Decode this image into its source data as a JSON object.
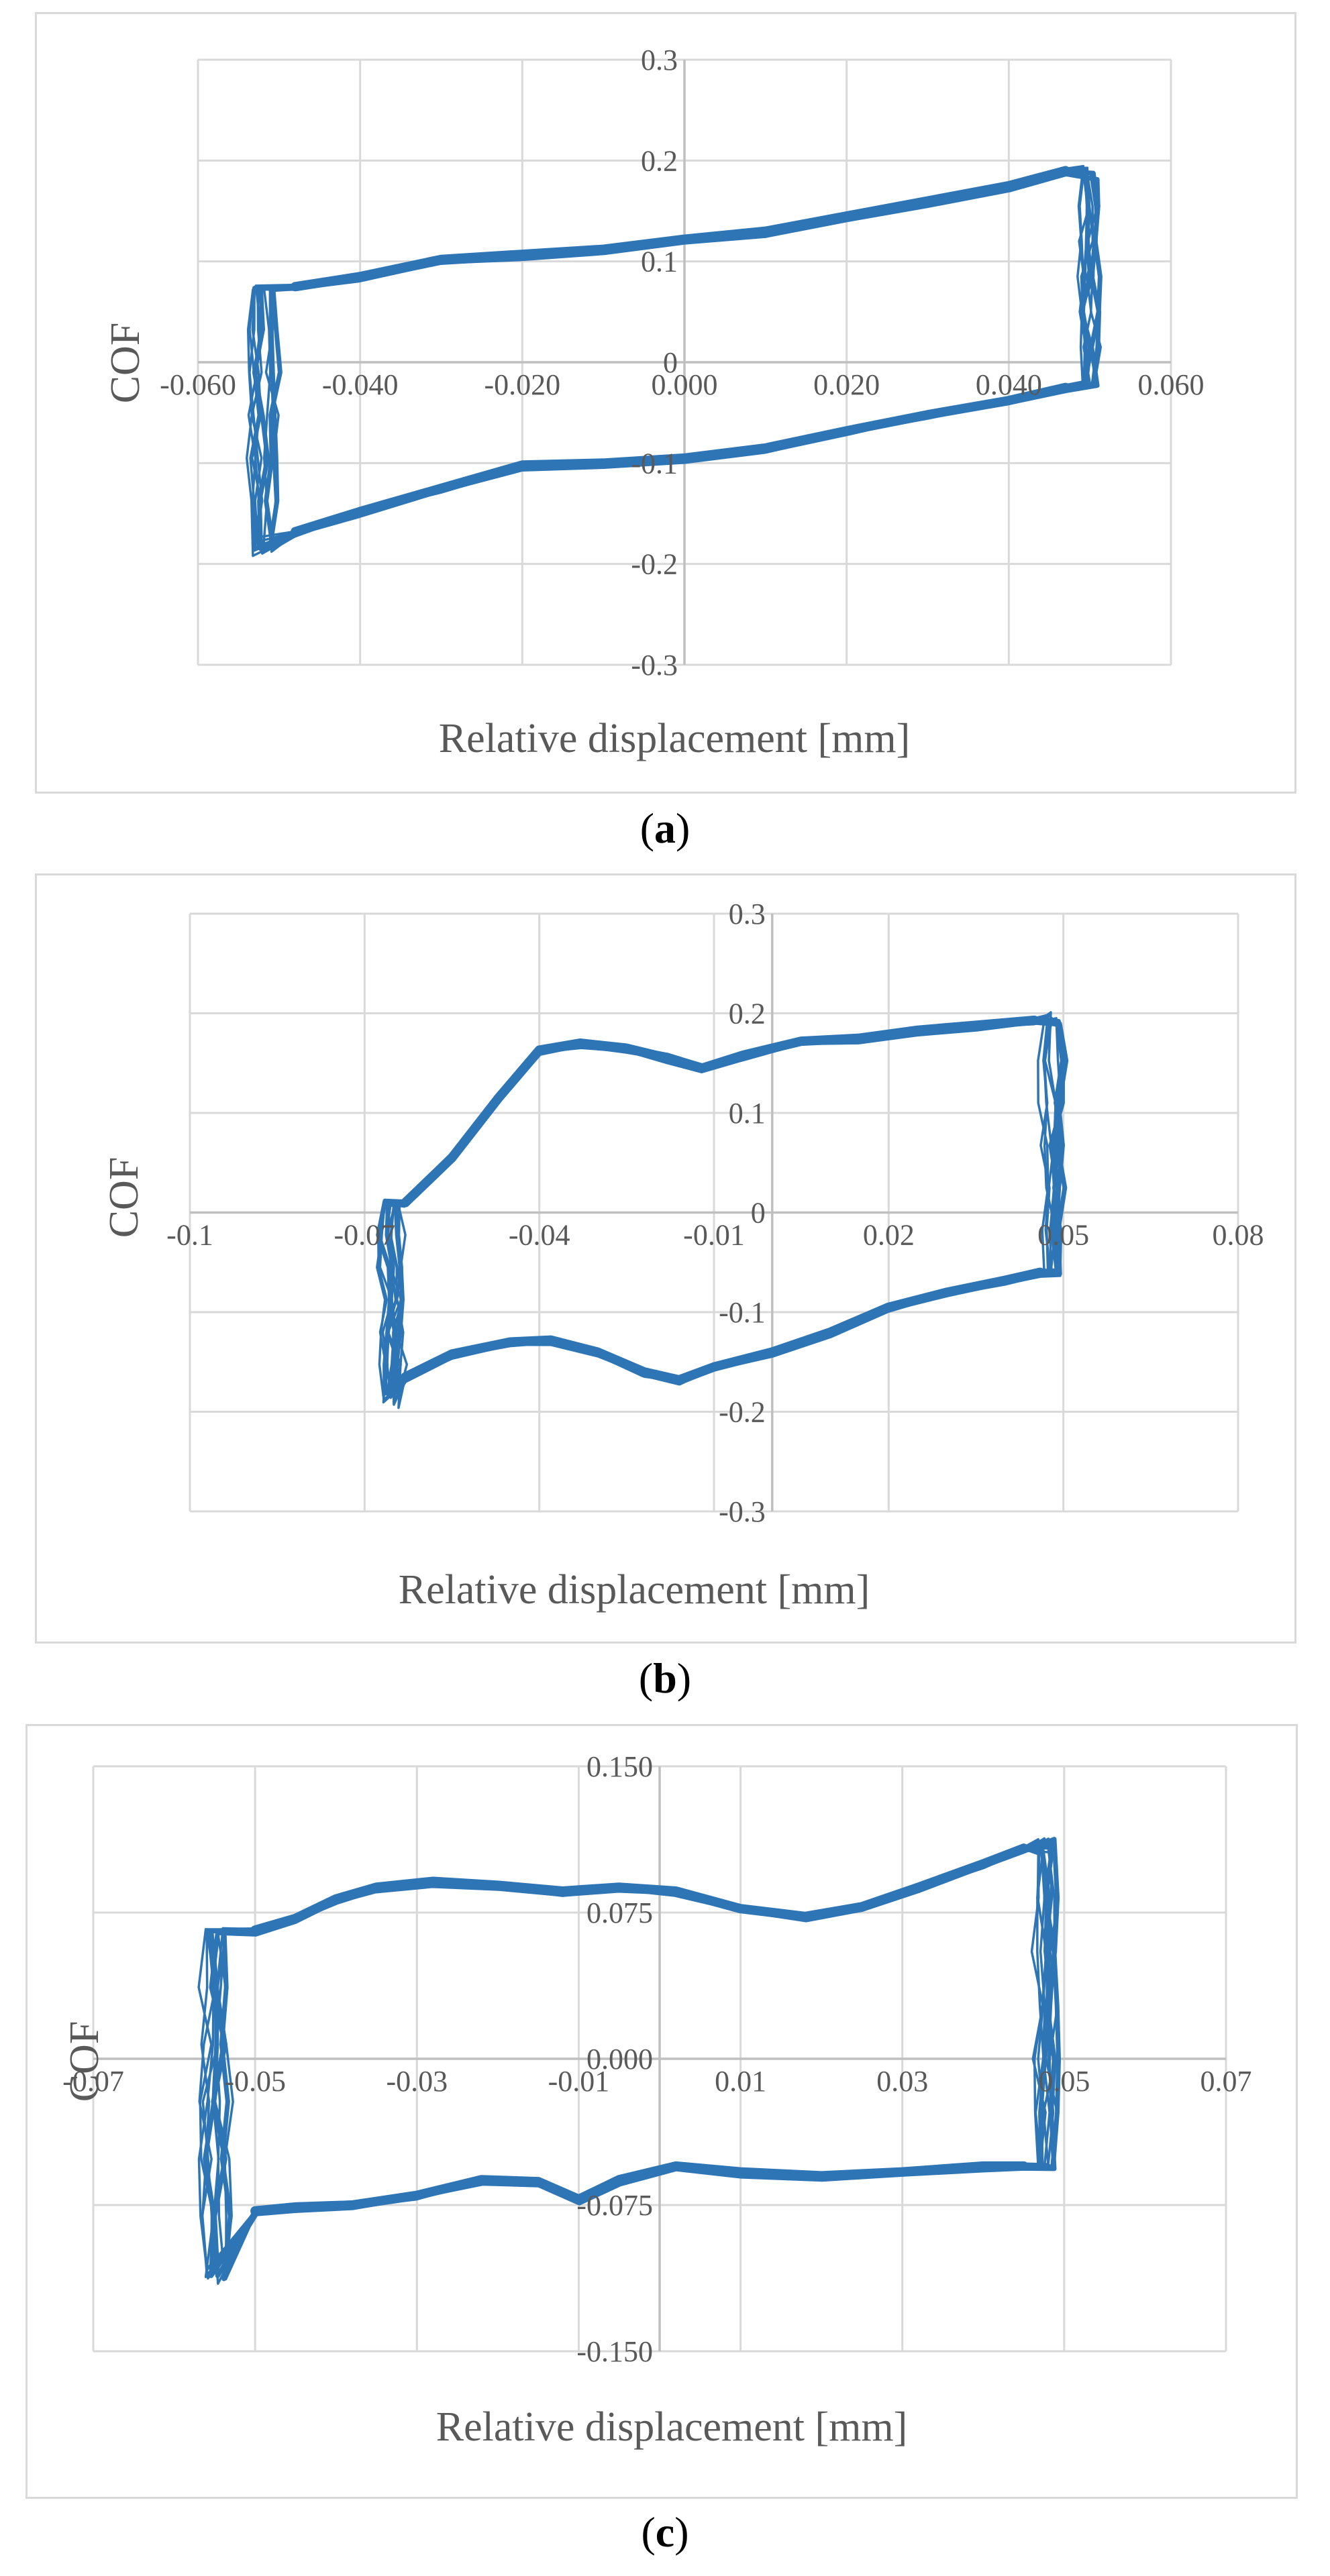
{
  "colors": {
    "series": "#2e75b6",
    "grid": "#d9d9d9",
    "axis": "#bfbfbf",
    "text": "#595959"
  },
  "chart_data": [
    {
      "type": "line",
      "panel": "a",
      "caption_letter": "a",
      "xlabel": "Relative displacement [mm]",
      "ylabel": "COF",
      "xlim": [
        -0.06,
        0.06
      ],
      "ylim": [
        -0.3,
        0.3
      ],
      "x_ticks": [
        "-0.060",
        "-0.040",
        "-0.020",
        "0.000",
        "0.020",
        "0.040",
        "0.060"
      ],
      "y_ticks": [
        "-0.3",
        "-0.2",
        "-0.1",
        "0",
        "0.1",
        "0.2",
        "0.3"
      ],
      "grid": true,
      "loop": {
        "x_left": -0.052,
        "x_right": 0.05,
        "top_left": 0.075,
        "bottom_left": -0.18,
        "top_right": 0.19,
        "bottom_right": -0.02,
        "upper": [
          [
            -0.048,
            0.075
          ],
          [
            -0.04,
            0.085
          ],
          [
            -0.03,
            0.102
          ],
          [
            -0.02,
            0.107
          ],
          [
            -0.01,
            0.112
          ],
          [
            0.0,
            0.122
          ],
          [
            0.01,
            0.13
          ],
          [
            0.02,
            0.145
          ],
          [
            0.03,
            0.16
          ],
          [
            0.04,
            0.175
          ],
          [
            0.047,
            0.19
          ]
        ],
        "lower": [
          [
            -0.048,
            -0.168
          ],
          [
            -0.04,
            -0.148
          ],
          [
            -0.03,
            -0.125
          ],
          [
            -0.02,
            -0.102
          ],
          [
            -0.01,
            -0.1
          ],
          [
            0.0,
            -0.095
          ],
          [
            0.01,
            -0.085
          ],
          [
            0.02,
            -0.068
          ],
          [
            0.03,
            -0.052
          ],
          [
            0.04,
            -0.038
          ],
          [
            0.047,
            -0.025
          ]
        ]
      }
    },
    {
      "type": "line",
      "panel": "b",
      "caption_letter": "b",
      "xlabel": "Relative displacement [mm]",
      "ylabel": "COF",
      "xlim": [
        -0.1,
        0.08
      ],
      "ylim": [
        -0.3,
        0.3
      ],
      "x_ticks": [
        "-0.1",
        "-0.07",
        "-0.04",
        "-0.01",
        "0.02",
        "0.05",
        "0.08"
      ],
      "y_ticks": [
        "-0.3",
        "-0.2",
        "-0.1",
        "0",
        "0.1",
        "0.2",
        "0.3"
      ],
      "grid": true,
      "loop": {
        "x_left": -0.065,
        "x_right": 0.048,
        "top_left": 0.01,
        "bottom_left": -0.185,
        "top_right": 0.195,
        "bottom_right": -0.06,
        "upper": [
          [
            -0.063,
            0.01
          ],
          [
            -0.055,
            0.055
          ],
          [
            -0.047,
            0.115
          ],
          [
            -0.04,
            0.163
          ],
          [
            -0.033,
            0.17
          ],
          [
            -0.025,
            0.165
          ],
          [
            -0.018,
            0.155
          ],
          [
            -0.012,
            0.145
          ],
          [
            -0.005,
            0.158
          ],
          [
            0.005,
            0.172
          ],
          [
            0.015,
            0.175
          ],
          [
            0.025,
            0.183
          ],
          [
            0.035,
            0.188
          ],
          [
            0.045,
            0.193
          ]
        ],
        "lower": [
          [
            -0.063,
            -0.165
          ],
          [
            -0.055,
            -0.142
          ],
          [
            -0.045,
            -0.13
          ],
          [
            -0.038,
            -0.128
          ],
          [
            -0.03,
            -0.14
          ],
          [
            -0.022,
            -0.16
          ],
          [
            -0.016,
            -0.168
          ],
          [
            -0.01,
            -0.155
          ],
          [
            0.0,
            -0.14
          ],
          [
            0.01,
            -0.12
          ],
          [
            0.02,
            -0.095
          ],
          [
            0.03,
            -0.08
          ],
          [
            0.04,
            -0.068
          ],
          [
            0.046,
            -0.06
          ]
        ]
      }
    },
    {
      "type": "line",
      "panel": "c",
      "caption_letter": "c",
      "xlabel": "Relative displacement [mm]",
      "ylabel": "COF",
      "xlim": [
        -0.07,
        0.07
      ],
      "ylim": [
        -0.15,
        0.15
      ],
      "x_ticks": [
        "-0.07",
        "-0.05",
        "-0.03",
        "-0.01",
        "0.01",
        "0.03",
        "0.05",
        "0.07"
      ],
      "y_ticks": [
        "-0.150",
        "-0.075",
        "0.000",
        "0.075",
        "0.150"
      ],
      "grid": true,
      "loop": {
        "x_left": -0.055,
        "x_right": 0.048,
        "top_left": 0.066,
        "bottom_left": -0.11,
        "top_right": 0.11,
        "bottom_right": -0.055,
        "upper": [
          [
            -0.05,
            0.066
          ],
          [
            -0.045,
            0.072
          ],
          [
            -0.04,
            0.082
          ],
          [
            -0.035,
            0.088
          ],
          [
            -0.028,
            0.091
          ],
          [
            -0.02,
            0.089
          ],
          [
            -0.012,
            0.086
          ],
          [
            -0.005,
            0.088
          ],
          [
            0.002,
            0.086
          ],
          [
            0.01,
            0.077
          ],
          [
            0.018,
            0.073
          ],
          [
            0.025,
            0.078
          ],
          [
            0.032,
            0.088
          ],
          [
            0.04,
            0.1
          ],
          [
            0.045,
            0.108
          ]
        ],
        "lower": [
          [
            -0.05,
            -0.078
          ],
          [
            -0.045,
            -0.076
          ],
          [
            -0.038,
            -0.075
          ],
          [
            -0.03,
            -0.07
          ],
          [
            -0.022,
            -0.062
          ],
          [
            -0.015,
            -0.063
          ],
          [
            -0.01,
            -0.072
          ],
          [
            -0.005,
            -0.062
          ],
          [
            0.002,
            -0.055
          ],
          [
            0.01,
            -0.058
          ],
          [
            0.02,
            -0.06
          ],
          [
            0.03,
            -0.058
          ],
          [
            0.04,
            -0.055
          ],
          [
            0.045,
            -0.055
          ]
        ]
      }
    }
  ]
}
